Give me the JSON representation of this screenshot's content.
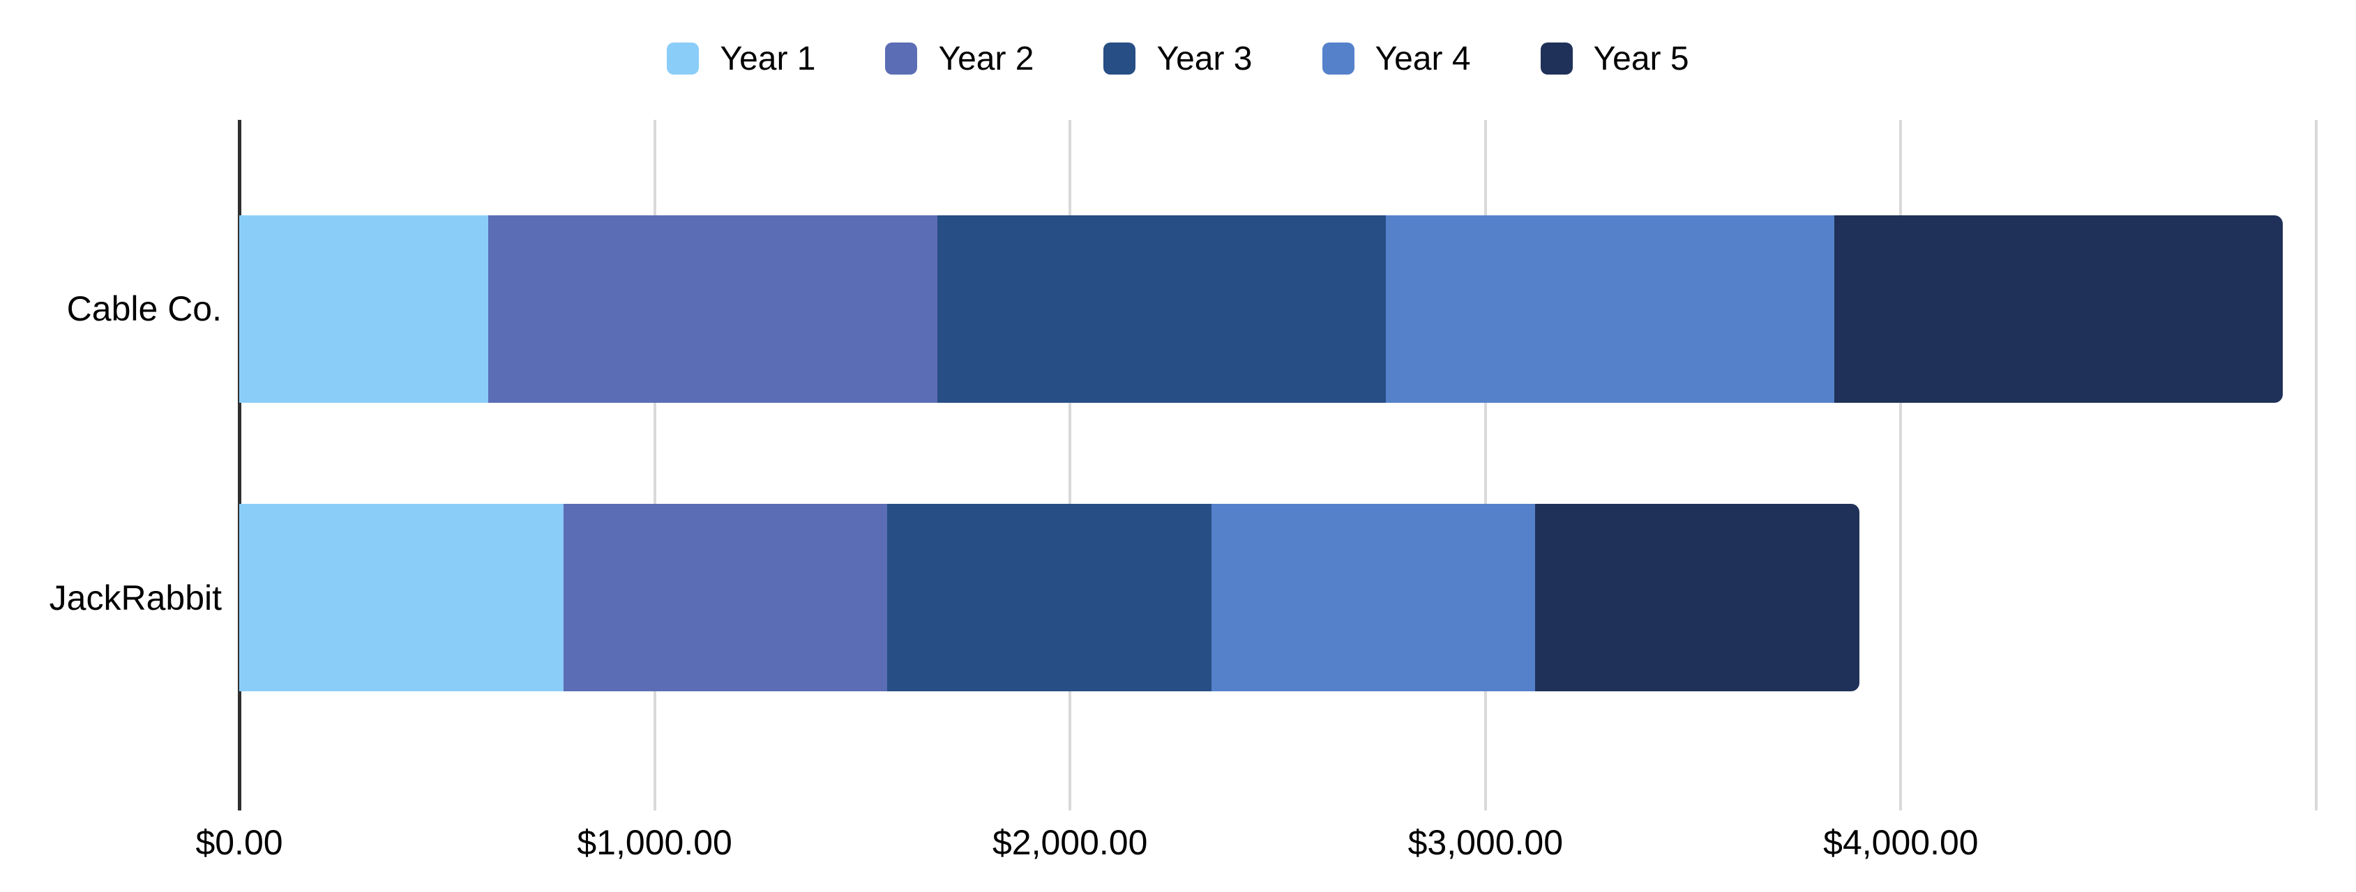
{
  "chart_data": {
    "type": "bar",
    "orientation": "horizontal",
    "stacked": true,
    "title": "",
    "categories": [
      "Cable Co.",
      "JackRabbit"
    ],
    "series": [
      {
        "name": "Year 1",
        "color": "#8BCDF9",
        "values": [
          600,
          780
        ]
      },
      {
        "name": "Year 2",
        "color": "#5B6DB4",
        "values": [
          1080,
          780
        ]
      },
      {
        "name": "Year 3",
        "color": "#274E85",
        "values": [
          1080,
          780
        ]
      },
      {
        "name": "Year 4",
        "color": "#5581CB",
        "values": [
          1080,
          780
        ]
      },
      {
        "name": "Year 5",
        "color": "#1F3158",
        "values": [
          1080,
          780
        ]
      }
    ],
    "xlim": [
      0,
      5000
    ],
    "x_tick_interval": 1000,
    "x_tick_labels": [
      "$0.00",
      "$1,000.00",
      "$2,000.00",
      "$3,000.00",
      "$4,000.00"
    ],
    "legend_position": "top",
    "legend_labels": [
      "Year 1",
      "Year 2",
      "Year 3",
      "Year 4",
      "Year 5"
    ],
    "grid": true
  },
  "colors": {
    "background": "#ffffff",
    "gridline": "#d9d9d9",
    "axis_line": "#2f2f2f",
    "text": "#000000"
  }
}
